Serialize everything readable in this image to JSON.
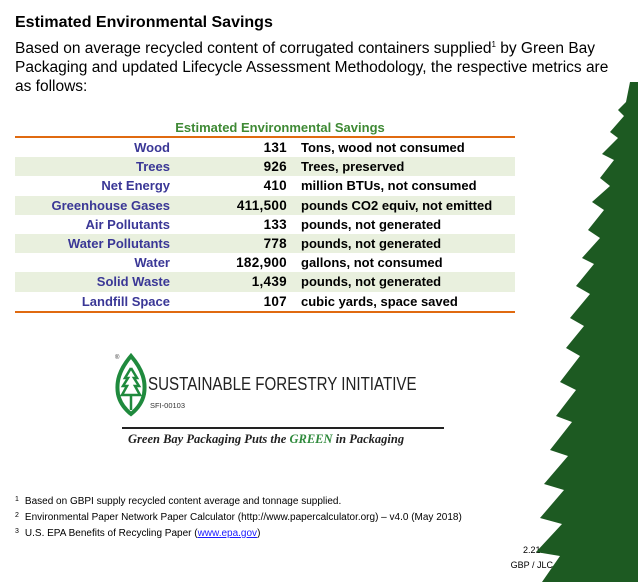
{
  "heading": "Estimated Environmental Savings",
  "intro_before": "Based on average recycled content of corrugated containers supplied",
  "intro_sup": "1",
  "intro_after": " by Green Bay Packaging and updated Lifecycle Assessment Methodology, the respective metrics are as follows:",
  "table": {
    "title": "Estimated Environmental Savings",
    "rows": [
      {
        "label": "Wood",
        "value": "131",
        "desc": "Tons, wood not consumed"
      },
      {
        "label": "Trees",
        "value": "926",
        "desc": "Trees, preserved"
      },
      {
        "label": "Net Energy",
        "value": "410",
        "desc": "million BTUs, not consumed"
      },
      {
        "label": "Greenhouse Gases",
        "value": "411,500",
        "desc": "pounds CO2 equiv, not emitted"
      },
      {
        "label": "Air Pollutants",
        "value": "133",
        "desc": "pounds, not generated"
      },
      {
        "label": "Water Pollutants",
        "value": "778",
        "desc": "pounds, not generated"
      },
      {
        "label": "Water",
        "value": "182,900",
        "desc": "gallons, not consumed"
      },
      {
        "label": "Solid Waste",
        "value": "1,439",
        "desc": "pounds, not generated"
      },
      {
        "label": "Landfill Space",
        "value": "107",
        "desc": "cubic yards, space saved"
      }
    ]
  },
  "logo": {
    "name": "SUSTAINABLE FORESTRY INITIATIVE",
    "code": "SFI-00103",
    "tagline_a": "Green Bay Packaging Puts the ",
    "tagline_green": "GREEN",
    "tagline_b": " in Packaging"
  },
  "footnotes": [
    {
      "n": "1",
      "text": "Based on GBPI supply recycled content average and tonnage supplied."
    },
    {
      "n": "2",
      "text": "Environmental Paper Network Paper Calculator (http://www.papercalculator.org) – v4.0 (May 2018)"
    },
    {
      "n": "3",
      "text": "U.S. EPA Benefits of Recycling Paper (",
      "link": "www.epa.gov",
      "after": ")"
    }
  ],
  "date": "2.21.22",
  "initials": "GBP / JLC"
}
